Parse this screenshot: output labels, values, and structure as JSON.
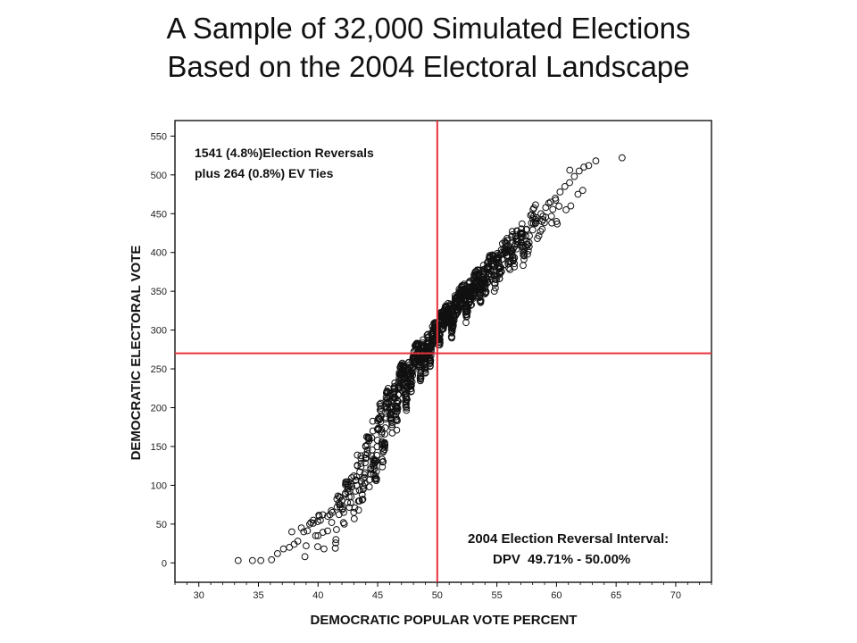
{
  "title": {
    "line1": "A Sample of 32,000 Simulated Elections",
    "line2": "Based on the 2004 Electoral Landscape"
  },
  "chart_data": {
    "type": "scatter",
    "xlabel": "DEMOCRATIC POPULAR VOTE PERCENT",
    "ylabel": "DEMOCRATIC ELECTORAL VOTE",
    "xlim": [
      28,
      73
    ],
    "ylim": [
      -25,
      570
    ],
    "xticks": [
      30,
      35,
      40,
      45,
      50,
      55,
      60,
      65,
      70
    ],
    "yticks": [
      0,
      50,
      100,
      150,
      200,
      250,
      300,
      350,
      400,
      450,
      500,
      550
    ],
    "reference_lines": {
      "x": 50,
      "y": 270,
      "color": "#e8323c"
    },
    "marker_color": "#111111",
    "annotations": {
      "top_left_line1": "1541 (4.8%)Election Reversals",
      "top_left_line2": "plus 264 (0.8%) EV Ties",
      "bottom_right_line1": "2004 Election Reversal Interval:",
      "bottom_right_line2": "DPV  49.71% - 50.00%"
    },
    "series": [
      {
        "x": [
          33.3,
          34.5,
          35.2,
          36.1,
          36.6,
          37.1,
          37.6,
          38.0,
          38.3,
          38.8,
          39.3,
          39.6,
          40.1,
          40.4,
          40.8,
          41.2,
          41.6,
          42.0,
          42.3,
          42.6,
          43.0,
          43.3,
          43.6,
          44.0,
          44.3,
          44.6,
          45.0,
          45.3,
          45.7,
          46.0,
          46.4,
          46.8,
          47.2,
          47.6,
          48.0,
          48.4,
          48.8,
          49.2,
          49.6,
          50.0,
          50.3,
          50.7,
          51.1,
          51.5,
          51.9,
          52.3,
          52.7,
          53.1,
          53.5,
          53.9,
          54.3,
          54.7,
          55.1,
          55.5,
          55.9,
          56.3,
          56.7,
          57.1,
          57.5,
          57.9,
          58.3,
          58.7,
          59.1,
          59.5,
          59.9,
          60.3,
          60.7,
          61.1,
          61.5,
          61.9,
          62.3,
          62.7,
          63.3,
          65.5,
          38.9,
          39.8,
          40.5,
          41.5,
          42.2,
          43.4,
          44.3,
          45.4,
          46.6,
          47.8,
          49.0,
          50.4,
          51.6,
          52.8,
          54.0,
          55.2,
          56.4,
          57.6,
          58.8,
          60.0,
          61.2,
          62.2,
          43.9,
          42.6,
          41.8,
          41.0,
          40.2,
          39.4,
          38.6,
          37.8,
          40.0,
          39.0,
          42.5,
          44.6,
          46.2,
          47.4,
          48.6,
          49.4,
          50.2,
          51.2,
          52.4,
          53.6,
          54.8,
          56.0,
          57.2,
          58.4,
          59.6,
          60.8,
          61.8,
          45.6,
          44.9,
          43.7,
          43.0,
          41.9
        ],
        "y": [
          3,
          3,
          3,
          4,
          12,
          18,
          20,
          24,
          28,
          40,
          50,
          55,
          60,
          62,
          60,
          65,
          72,
          80,
          90,
          100,
          112,
          125,
          138,
          150,
          160,
          170,
          183,
          195,
          205,
          215,
          225,
          238,
          250,
          258,
          265,
          272,
          280,
          290,
          295,
          300,
          312,
          320,
          328,
          335,
          342,
          350,
          355,
          360,
          365,
          372,
          380,
          385,
          392,
          398,
          405,
          412,
          418,
          425,
          430,
          438,
          445,
          450,
          458,
          465,
          470,
          478,
          485,
          490,
          498,
          505,
          510,
          512,
          518,
          522,
          8,
          35,
          18,
          30,
          50,
          68,
          98,
          130,
          185,
          230,
          255,
          310,
          330,
          340,
          355,
          375,
          390,
          410,
          430,
          440,
          460,
          480,
          110,
          85,
          75,
          62,
          55,
          52,
          45,
          40,
          35,
          22,
          95,
          120,
          175,
          205,
          245,
          262,
          285,
          300,
          320,
          345,
          360,
          380,
          400,
          418,
          438,
          455,
          475,
          150,
          118,
          88,
          65,
          75
        ]
      }
    ]
  }
}
